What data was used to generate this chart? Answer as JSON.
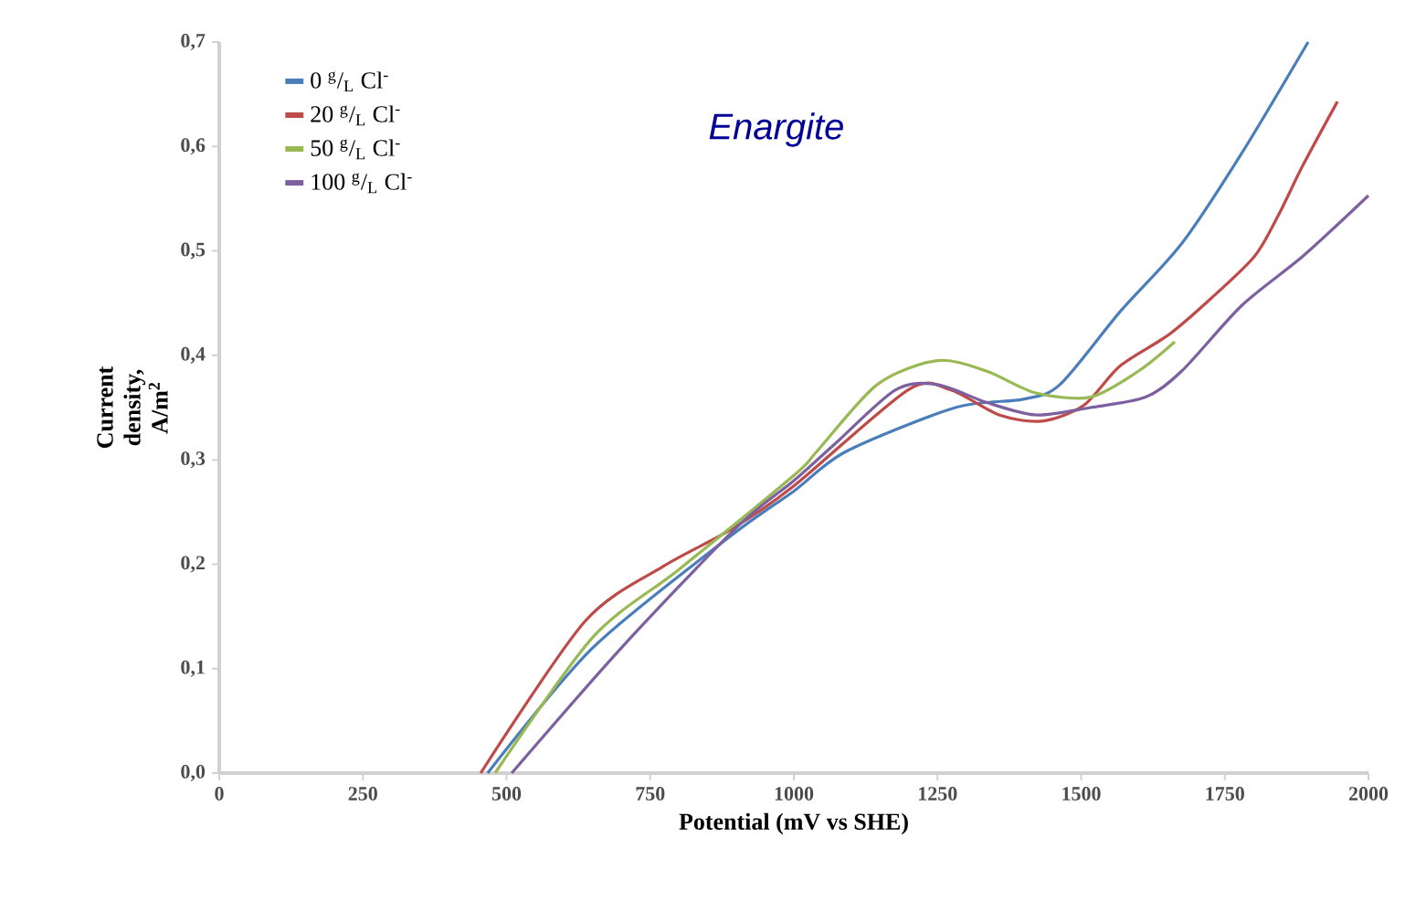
{
  "chart_data": {
    "type": "line",
    "xlabel": "Potential (mV vs SHE)",
    "ylabel": "Current density, A/m$^{2}$",
    "annotations": [
      "Enargite"
    ],
    "xlim": [
      0,
      2000
    ],
    "ylim": [
      0,
      0.7
    ],
    "xticks": [
      0,
      250,
      500,
      750,
      1000,
      1250,
      1500,
      1750,
      2000
    ],
    "yticks": [
      {
        "value": 0,
        "label": "0,0"
      },
      {
        "value": 0.1,
        "label": "0,1"
      },
      {
        "value": 0.2,
        "label": "0,2"
      },
      {
        "value": 0.3,
        "label": "0,3"
      },
      {
        "value": 0.4,
        "label": "0,4"
      },
      {
        "value": 0.5,
        "label": "0,5"
      },
      {
        "value": 0.6,
        "label": "0,6"
      },
      {
        "value": 0.7,
        "label": "0,7"
      }
    ],
    "grid": false,
    "legend": "top left",
    "marker": "none",
    "line_style": "solid",
    "series": [
      {
        "name": "0 $^{g}$/$_{L}$ Cl$^{-}$",
        "color": "#4a7ebb",
        "x": [
          467,
          650,
          890,
          1000,
          1091,
          1281,
          1399,
          1463,
          1568,
          1675,
          1780,
          1895
        ],
        "values": [
          0,
          0.12,
          0.227,
          0.27,
          0.308,
          0.35,
          0.358,
          0.372,
          0.442,
          0.507,
          0.594,
          0.7
        ]
      },
      {
        "name": "20 $^{g}$/$_{L}$ Cl$^{-}$",
        "color": "#be4b48",
        "x": [
          455,
          636,
          773,
          890,
          1000,
          1199,
          1272,
          1357,
          1431,
          1504,
          1568,
          1653,
          1727,
          1802,
          1844,
          1886,
          1946
        ],
        "values": [
          0,
          0.145,
          0.198,
          0.233,
          0.275,
          0.367,
          0.367,
          0.343,
          0.337,
          0.352,
          0.39,
          0.42,
          0.455,
          0.495,
          0.535,
          0.582,
          0.643
        ]
      },
      {
        "name": "50 $^{g}$/$_{L}$ Cl$^{-}$",
        "color": "#98b954",
        "x": [
          480,
          650,
          800,
          1000,
          1040,
          1145,
          1250,
          1335,
          1421,
          1516,
          1600,
          1663
        ],
        "values": [
          0,
          0.13,
          0.195,
          0.285,
          0.308,
          0.372,
          0.395,
          0.385,
          0.364,
          0.36,
          0.385,
          0.413
        ]
      },
      {
        "name": "100 $^{g}$/$_{L}$ Cl$^{-}$",
        "color": "#7d60a0",
        "x": [
          509,
          700,
          900,
          1000,
          1071,
          1177,
          1250,
          1335,
          1421,
          1516,
          1612,
          1675,
          1780,
          1886,
          2000
        ],
        "values": [
          0,
          0.12,
          0.235,
          0.28,
          0.315,
          0.367,
          0.372,
          0.355,
          0.343,
          0.35,
          0.36,
          0.385,
          0.448,
          0.495,
          0.553
        ]
      }
    ]
  }
}
